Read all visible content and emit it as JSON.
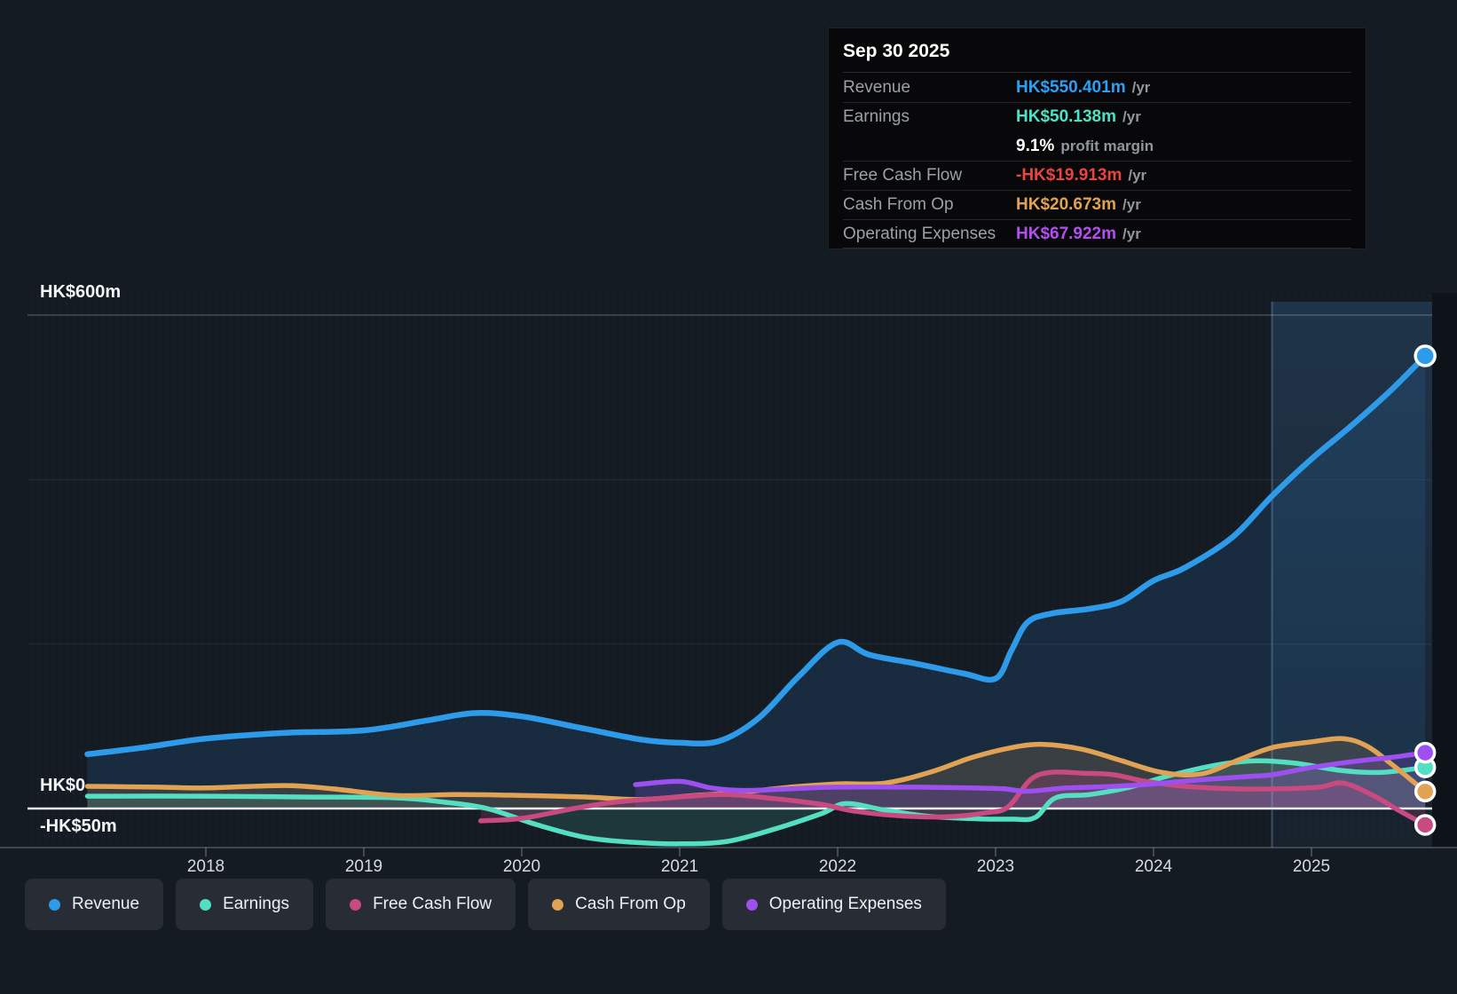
{
  "tooltip": {
    "date": "Sep 30 2025",
    "rows": [
      {
        "label": "Revenue",
        "value": "HK$550.401m",
        "suffix": "/yr",
        "color": "#2da0f5"
      },
      {
        "label": "Earnings",
        "value": "HK$50.138m",
        "suffix": "/yr",
        "color": "#4ce2c5"
      },
      {
        "label": "",
        "value": "9.1%",
        "suffix": "profit margin",
        "color": "#ffffff",
        "margin_row": true
      },
      {
        "label": "Free Cash Flow",
        "value": "-HK$19.913m",
        "suffix": "/yr",
        "color": "#ea453c"
      },
      {
        "label": "Cash From Op",
        "value": "HK$20.673m",
        "suffix": "/yr",
        "color": "#e2a24f"
      },
      {
        "label": "Operating Expenses",
        "value": "HK$67.922m",
        "suffix": "/yr",
        "color": "#b44df2"
      }
    ]
  },
  "y_axis": {
    "labels": [
      {
        "text": "HK$600m",
        "value": 600
      },
      {
        "text": "HK$0",
        "value": 0
      },
      {
        "text": "-HK$50m",
        "value": -50
      }
    ]
  },
  "x_axis": {
    "years": [
      "2018",
      "2019",
      "2020",
      "2021",
      "2022",
      "2023",
      "2024",
      "2025"
    ]
  },
  "legend": [
    {
      "label": "Revenue",
      "color": "#2e9bea"
    },
    {
      "label": "Earnings",
      "color": "#55dfc2"
    },
    {
      "label": "Free Cash Flow",
      "color": "#c84a80"
    },
    {
      "label": "Cash From Op",
      "color": "#e2a254"
    },
    {
      "label": "Operating Expenses",
      "color": "#9d50ef"
    }
  ],
  "chart_data": {
    "type": "area",
    "unit": "HK$ millions",
    "x_unit": "calendar year (decimal)",
    "x_range": [
      2017.25,
      2025.75
    ],
    "ylim": [
      -50,
      600
    ],
    "y_gridlines": [
      600,
      400,
      200,
      0
    ],
    "highlight_from": 2024.75,
    "last_point_date": "Sep 30 2025",
    "legend_position": "bottom-left",
    "series": [
      {
        "name": "Revenue",
        "color": "#2e9bea",
        "fill": "rgba(45,130,205,0.16)",
        "width": 6.5,
        "end_value": 550.401,
        "points": [
          [
            2017.25,
            66
          ],
          [
            2017.6,
            74
          ],
          [
            2018,
            85
          ],
          [
            2018.5,
            92
          ],
          [
            2019,
            95
          ],
          [
            2019.4,
            107
          ],
          [
            2019.7,
            116
          ],
          [
            2020,
            112
          ],
          [
            2020.4,
            97
          ],
          [
            2020.75,
            84
          ],
          [
            2021,
            80
          ],
          [
            2021.25,
            82
          ],
          [
            2021.5,
            110
          ],
          [
            2021.75,
            160
          ],
          [
            2022,
            202
          ],
          [
            2022.2,
            187
          ],
          [
            2022.5,
            176
          ],
          [
            2022.8,
            164
          ],
          [
            2023,
            158
          ],
          [
            2023.1,
            192
          ],
          [
            2023.2,
            226
          ],
          [
            2023.35,
            237
          ],
          [
            2023.6,
            243
          ],
          [
            2023.8,
            252
          ],
          [
            2024,
            277
          ],
          [
            2024.2,
            293
          ],
          [
            2024.5,
            330
          ],
          [
            2024.75,
            380
          ],
          [
            2025,
            425
          ],
          [
            2025.25,
            465
          ],
          [
            2025.5,
            508
          ],
          [
            2025.72,
            550.4
          ]
        ]
      },
      {
        "name": "Earnings",
        "color": "#55dfc2",
        "fill": "rgba(83,224,195,0.15)",
        "width": 5.5,
        "end_value": 50.138,
        "points": [
          [
            2017.25,
            15
          ],
          [
            2018,
            15
          ],
          [
            2018.6,
            14
          ],
          [
            2019.2,
            13
          ],
          [
            2019.5,
            8
          ],
          [
            2019.78,
            0
          ],
          [
            2020.1,
            -20
          ],
          [
            2020.4,
            -35
          ],
          [
            2020.7,
            -41
          ],
          [
            2021,
            -43
          ],
          [
            2021.3,
            -40
          ],
          [
            2021.6,
            -25
          ],
          [
            2021.9,
            -6
          ],
          [
            2022.05,
            6
          ],
          [
            2022.3,
            -2
          ],
          [
            2022.55,
            -9
          ],
          [
            2022.8,
            -12
          ],
          [
            2023.1,
            -13
          ],
          [
            2023.25,
            -11
          ],
          [
            2023.38,
            13
          ],
          [
            2023.6,
            17
          ],
          [
            2023.85,
            26
          ],
          [
            2024.1,
            40
          ],
          [
            2024.4,
            53
          ],
          [
            2024.65,
            58
          ],
          [
            2024.9,
            55
          ],
          [
            2025.2,
            46
          ],
          [
            2025.45,
            44
          ],
          [
            2025.72,
            50.1
          ]
        ]
      },
      {
        "name": "Cash From Op",
        "color": "#e2a254",
        "fill": "rgba(227,163,86,0.16)",
        "width": 5.5,
        "end_value": 20.673,
        "points": [
          [
            2017.25,
            27
          ],
          [
            2017.7,
            26
          ],
          [
            2018,
            25
          ],
          [
            2018.5,
            28
          ],
          [
            2018.8,
            24
          ],
          [
            2019.2,
            16
          ],
          [
            2019.6,
            17
          ],
          [
            2020,
            16
          ],
          [
            2020.4,
            14
          ],
          [
            2020.75,
            11
          ],
          [
            2021.1,
            16
          ],
          [
            2021.4,
            20
          ],
          [
            2021.7,
            26
          ],
          [
            2022,
            30
          ],
          [
            2022.3,
            31
          ],
          [
            2022.6,
            45
          ],
          [
            2022.85,
            62
          ],
          [
            2023.1,
            74
          ],
          [
            2023.3,
            78
          ],
          [
            2023.55,
            72
          ],
          [
            2023.8,
            58
          ],
          [
            2024.05,
            44
          ],
          [
            2024.3,
            42
          ],
          [
            2024.55,
            60
          ],
          [
            2024.75,
            74
          ],
          [
            2025,
            81
          ],
          [
            2025.2,
            85
          ],
          [
            2025.35,
            76
          ],
          [
            2025.5,
            55
          ],
          [
            2025.72,
            20.7
          ]
        ]
      },
      {
        "name": "Free Cash Flow",
        "color": "#c84a80",
        "fill": "rgba(201,73,127,0.22)",
        "width": 5.5,
        "end_value": -19.913,
        "points": [
          [
            2019.74,
            -15
          ],
          [
            2020,
            -12
          ],
          [
            2020.33,
            0
          ],
          [
            2020.6,
            8
          ],
          [
            2021,
            14
          ],
          [
            2021.3,
            17
          ],
          [
            2021.6,
            12
          ],
          [
            2021.9,
            5
          ],
          [
            2022.1,
            -3
          ],
          [
            2022.4,
            -9
          ],
          [
            2022.7,
            -10
          ],
          [
            2022.95,
            -5
          ],
          [
            2023.08,
            2
          ],
          [
            2023.22,
            35
          ],
          [
            2023.35,
            44
          ],
          [
            2023.55,
            43
          ],
          [
            2023.75,
            41
          ],
          [
            2023.95,
            33
          ],
          [
            2024.2,
            27
          ],
          [
            2024.5,
            24
          ],
          [
            2024.8,
            24
          ],
          [
            2025.05,
            26
          ],
          [
            2025.2,
            31
          ],
          [
            2025.4,
            15
          ],
          [
            2025.55,
            -2
          ],
          [
            2025.72,
            -19.9
          ]
        ]
      },
      {
        "name": "Operating Expenses",
        "color": "#9d50ef",
        "fill": "rgba(162,79,242,0.20)",
        "width": 5.5,
        "end_value": 67.922,
        "points": [
          [
            2020.72,
            29
          ],
          [
            2021,
            33
          ],
          [
            2021.2,
            25
          ],
          [
            2021.4,
            22
          ],
          [
            2021.7,
            24
          ],
          [
            2022,
            26
          ],
          [
            2022.5,
            26
          ],
          [
            2022.85,
            25
          ],
          [
            2023.05,
            24
          ],
          [
            2023.2,
            21
          ],
          [
            2023.45,
            25
          ],
          [
            2023.75,
            27
          ],
          [
            2024,
            30
          ],
          [
            2024.3,
            35
          ],
          [
            2024.6,
            39
          ],
          [
            2024.75,
            41
          ],
          [
            2025,
            50
          ],
          [
            2025.3,
            58
          ],
          [
            2025.5,
            62
          ],
          [
            2025.72,
            67.9
          ]
        ]
      }
    ]
  }
}
